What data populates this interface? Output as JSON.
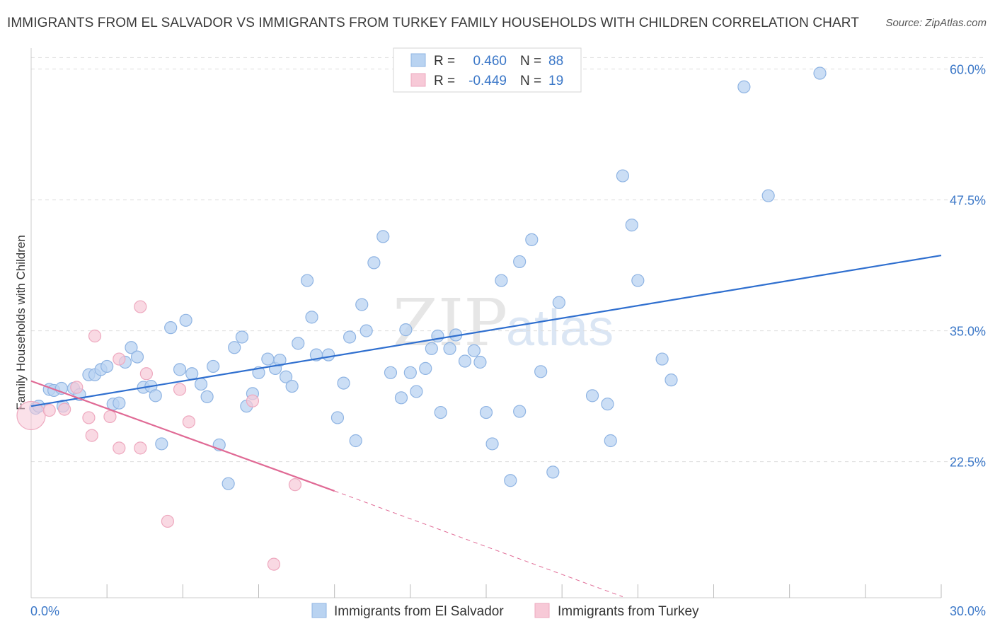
{
  "header": {
    "title": "IMMIGRANTS FROM EL SALVADOR VS IMMIGRANTS FROM TURKEY FAMILY HOUSEHOLDS WITH CHILDREN CORRELATION CHART",
    "source": "Source: ZipAtlas.com"
  },
  "watermark": {
    "zip": "ZIP",
    "atlas": "atlas"
  },
  "legend": {
    "rows": [
      {
        "r_label": "R =",
        "r_value": "0.460",
        "n_label": "N =",
        "n_value": "88"
      },
      {
        "r_label": "R =",
        "r_value": "-0.449",
        "n_label": "N =",
        "n_value": "19"
      }
    ]
  },
  "bottom_legend": {
    "series1": "Immigrants from El Salvador",
    "series2": "Immigrants from Turkey"
  },
  "colors": {
    "blue_fill": "#b9d3f1",
    "blue_stroke": "#8fb4e3",
    "blue_line": "#2f6fcf",
    "pink_fill": "#f7c9d7",
    "pink_stroke": "#eea9bf",
    "pink_line": "#e06a95",
    "tick_label": "#3c78c8"
  },
  "chart_data": {
    "type": "scatter",
    "title": "IMMIGRANTS FROM EL SALVADOR VS IMMIGRANTS FROM TURKEY FAMILY HOUSEHOLDS WITH CHILDREN CORRELATION CHART",
    "xlabel": "",
    "ylabel": "Family Households with Children",
    "xlim": [
      0,
      30
    ],
    "ylim": [
      9.5,
      62
    ],
    "x_tick_labels": [
      "0.0%",
      "30.0%"
    ],
    "y_ticks": [
      22.5,
      35.0,
      47.5,
      60.0
    ],
    "y_tick_labels": [
      "22.5%",
      "35.0%",
      "47.5%",
      "60.0%"
    ],
    "series": [
      {
        "name": "Immigrants from El Salvador",
        "color": "#8fb4e3",
        "trend": {
          "x0": 0.0,
          "y0": 27.8,
          "x1": 30.0,
          "y1": 42.2
        },
        "points": [
          [
            0.15,
            27.6
          ],
          [
            0.25,
            27.8
          ],
          [
            0.6,
            29.4
          ],
          [
            0.75,
            29.3
          ],
          [
            1.0,
            29.5
          ],
          [
            1.05,
            27.8
          ],
          [
            1.4,
            29.5
          ],
          [
            1.6,
            28.9
          ],
          [
            1.9,
            30.8
          ],
          [
            2.1,
            30.8
          ],
          [
            2.3,
            31.3
          ],
          [
            2.5,
            31.6
          ],
          [
            2.7,
            28.0
          ],
          [
            2.9,
            28.1
          ],
          [
            3.1,
            32.0
          ],
          [
            3.3,
            33.4
          ],
          [
            3.5,
            32.5
          ],
          [
            3.7,
            29.6
          ],
          [
            3.95,
            29.7
          ],
          [
            4.1,
            28.8
          ],
          [
            4.3,
            24.2
          ],
          [
            4.6,
            35.3
          ],
          [
            4.9,
            31.3
          ],
          [
            5.1,
            36.0
          ],
          [
            5.3,
            30.9
          ],
          [
            5.6,
            29.9
          ],
          [
            5.8,
            28.7
          ],
          [
            6.0,
            31.6
          ],
          [
            6.2,
            24.1
          ],
          [
            6.5,
            20.4
          ],
          [
            6.7,
            33.4
          ],
          [
            6.95,
            34.4
          ],
          [
            7.1,
            27.8
          ],
          [
            7.3,
            29.0
          ],
          [
            7.5,
            31.0
          ],
          [
            7.8,
            32.3
          ],
          [
            8.05,
            31.4
          ],
          [
            8.2,
            32.2
          ],
          [
            8.4,
            30.6
          ],
          [
            8.6,
            29.7
          ],
          [
            8.8,
            33.8
          ],
          [
            9.1,
            39.8
          ],
          [
            9.25,
            36.3
          ],
          [
            9.4,
            32.7
          ],
          [
            9.8,
            32.7
          ],
          [
            10.1,
            26.7
          ],
          [
            10.3,
            30.0
          ],
          [
            10.5,
            34.4
          ],
          [
            10.7,
            24.5
          ],
          [
            10.9,
            37.5
          ],
          [
            11.05,
            35.0
          ],
          [
            11.3,
            41.5
          ],
          [
            11.6,
            44.0
          ],
          [
            11.85,
            31.0
          ],
          [
            12.2,
            28.6
          ],
          [
            12.35,
            35.1
          ],
          [
            12.5,
            31.0
          ],
          [
            12.7,
            29.2
          ],
          [
            13.0,
            31.4
          ],
          [
            13.2,
            33.3
          ],
          [
            13.4,
            34.5
          ],
          [
            13.5,
            27.2
          ],
          [
            13.8,
            33.3
          ],
          [
            14.0,
            34.6
          ],
          [
            14.3,
            32.1
          ],
          [
            14.6,
            33.1
          ],
          [
            14.8,
            32.0
          ],
          [
            15.0,
            27.2
          ],
          [
            15.2,
            24.2
          ],
          [
            15.5,
            39.8
          ],
          [
            15.8,
            20.7
          ],
          [
            16.1,
            41.6
          ],
          [
            16.1,
            27.3
          ],
          [
            16.5,
            43.7
          ],
          [
            16.8,
            31.1
          ],
          [
            17.2,
            21.5
          ],
          [
            17.4,
            37.7
          ],
          [
            18.5,
            28.8
          ],
          [
            19.0,
            28.0
          ],
          [
            19.1,
            24.5
          ],
          [
            19.5,
            49.8
          ],
          [
            19.8,
            45.1
          ],
          [
            20.0,
            39.8
          ],
          [
            20.8,
            32.3
          ],
          [
            21.1,
            30.3
          ],
          [
            23.5,
            58.3
          ],
          [
            24.3,
            47.9
          ],
          [
            26.0,
            59.6
          ]
        ]
      },
      {
        "name": "Immigrants from Turkey",
        "color": "#eea9bf",
        "trend": {
          "x0": 0.0,
          "y0": 30.2,
          "x1": 10.0,
          "y1": 19.7,
          "x_dash_end": 19.5,
          "y_dash_end": 9.6
        },
        "points": [
          [
            0.0,
            26.9
          ],
          [
            0.6,
            27.4
          ],
          [
            1.1,
            27.5
          ],
          [
            1.5,
            29.6
          ],
          [
            1.9,
            26.7
          ],
          [
            2.0,
            25.0
          ],
          [
            2.1,
            34.5
          ],
          [
            2.6,
            26.8
          ],
          [
            2.9,
            32.3
          ],
          [
            2.9,
            23.8
          ],
          [
            3.6,
            37.3
          ],
          [
            3.6,
            23.8
          ],
          [
            3.8,
            30.9
          ],
          [
            4.5,
            16.8
          ],
          [
            4.9,
            29.4
          ],
          [
            5.2,
            26.3
          ],
          [
            7.3,
            28.3
          ],
          [
            8.0,
            12.7
          ],
          [
            8.7,
            20.3
          ]
        ]
      }
    ]
  }
}
